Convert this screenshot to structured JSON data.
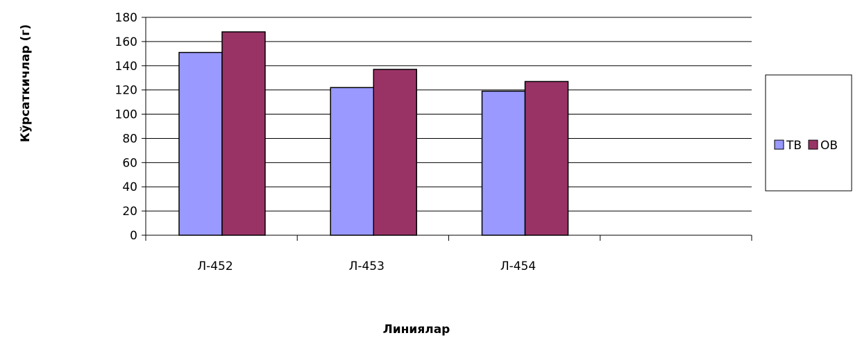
{
  "chart_data": {
    "type": "bar",
    "categories": [
      "Л-452",
      "Л-453",
      "Л-454"
    ],
    "series": [
      {
        "name": "ТВ",
        "values": [
          151,
          122,
          119
        ],
        "color": "#9999FF"
      },
      {
        "name": "ОВ",
        "values": [
          168,
          137,
          127
        ],
        "color": "#993366"
      }
    ],
    "title": "",
    "xlabel": "Линиялар",
    "ylabel": "Кўрсаткичлар (г)",
    "ylim": [
      0,
      180
    ],
    "yticks": [
      0,
      20,
      40,
      60,
      80,
      100,
      120,
      140,
      160,
      180
    ],
    "grid": true,
    "legend_position": "right"
  }
}
